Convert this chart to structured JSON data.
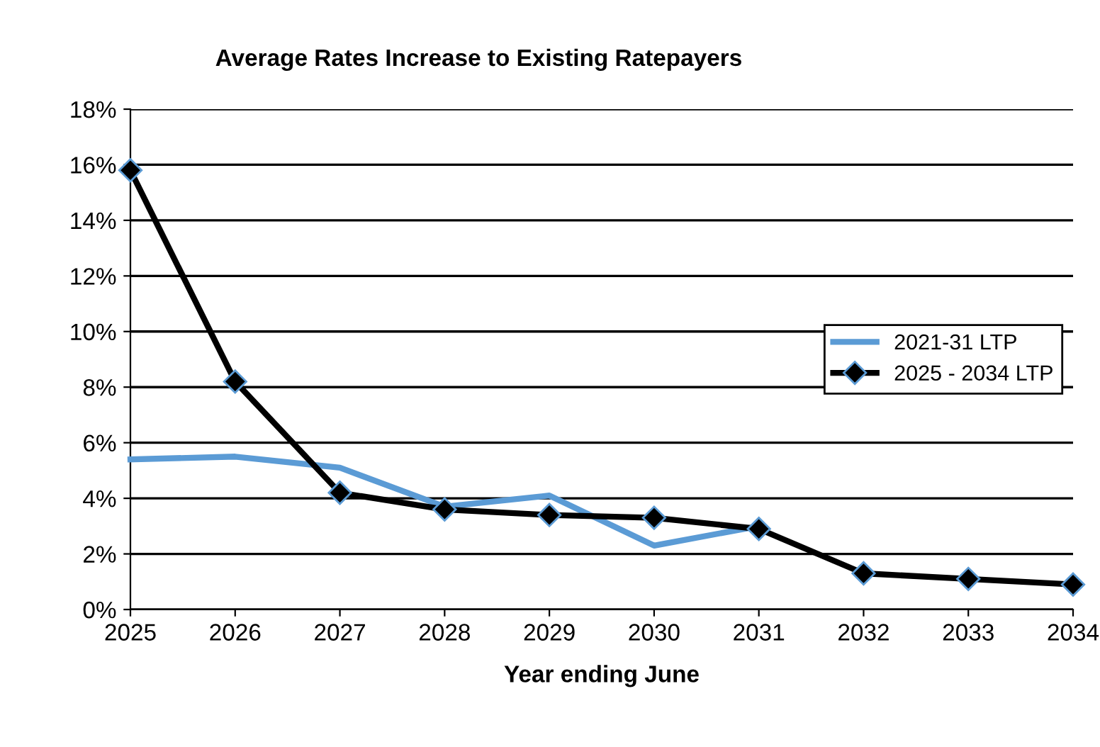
{
  "chart_data": {
    "type": "line",
    "title": "Average Rates Increase to Existing Ratepayers",
    "xlabel": "Year ending June",
    "x": [
      2025,
      2026,
      2027,
      2028,
      2029,
      2030,
      2031,
      2032,
      2033,
      2034
    ],
    "series": [
      {
        "name": "2021-31 LTP",
        "color": "#5b9bd5",
        "marker": "none",
        "values": [
          5.4,
          5.5,
          5.1,
          3.7,
          4.1,
          2.3,
          3.0,
          null,
          null,
          null
        ]
      },
      {
        "name": "2025 - 2034 LTP",
        "color": "#000000",
        "marker": "diamond",
        "values": [
          15.8,
          8.2,
          4.2,
          3.6,
          3.4,
          3.3,
          2.9,
          1.3,
          1.1,
          0.9
        ]
      }
    ],
    "xlim": [
      2025,
      2034
    ],
    "xticks": [
      2025,
      2026,
      2027,
      2028,
      2029,
      2030,
      2031,
      2032,
      2033,
      2034
    ],
    "ylim": [
      0,
      18
    ],
    "yticks": [
      {
        "value": 0,
        "label": "0%"
      },
      {
        "value": 2,
        "label": "2%"
      },
      {
        "value": 4,
        "label": "4%"
      },
      {
        "value": 6,
        "label": "6%"
      },
      {
        "value": 8,
        "label": "8%"
      },
      {
        "value": 10,
        "label": "10%"
      },
      {
        "value": 12,
        "label": "12%"
      },
      {
        "value": 14,
        "label": "14%"
      },
      {
        "value": 16,
        "label": "16%"
      },
      {
        "value": 18,
        "label": "18%"
      }
    ],
    "grid": "y",
    "legend": "center right",
    "line_style": "solid"
  }
}
